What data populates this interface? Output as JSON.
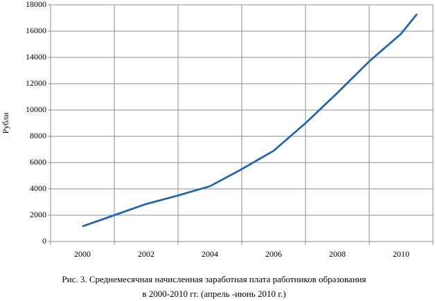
{
  "chart_data": {
    "type": "line",
    "y_label": "Рубли",
    "caption": [
      "Рис. 3. Среднемесячная начисленная заработная плата работников образования",
      "в 2000-2010 гг. (апрель -июнь 2010 г.)"
    ],
    "x": [
      2000,
      2001,
      2002,
      2003,
      2004,
      2005,
      2006,
      2007,
      2008,
      2009,
      2010,
      2010.5
    ],
    "series": [
      {
        "color": "#2566a6",
        "values": [
          1150,
          2000,
          2850,
          3500,
          4200,
          5500,
          6900,
          9000,
          11300,
          13700,
          15800,
          17300
        ]
      }
    ],
    "xlim": [
      1999,
      2011
    ],
    "xticks": [
      2000,
      2002,
      2004,
      2006,
      2008,
      2010
    ],
    "ylim": [
      0,
      18000
    ],
    "yticks": [
      0,
      2000,
      4000,
      6000,
      8000,
      10000,
      12000,
      14000,
      16000,
      18000
    ],
    "grid": true
  }
}
